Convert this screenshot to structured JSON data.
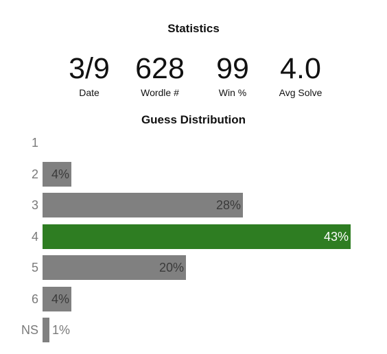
{
  "statistics": {
    "title": "Statistics",
    "items": [
      {
        "value": "3/9",
        "label": "Date"
      },
      {
        "value": "628",
        "label": "Wordle #"
      },
      {
        "value": "99",
        "label": "Win %"
      },
      {
        "value": "4.0",
        "label": "Avg Solve"
      }
    ]
  },
  "distribution": {
    "title": "Guess Distribution",
    "max_percent": 43,
    "bar_color": "#808080",
    "highlight_color": "#2e7d22",
    "rows": [
      {
        "guess": "1",
        "percent": 0,
        "label": "",
        "highlight": false
      },
      {
        "guess": "2",
        "percent": 4,
        "label": "4%",
        "highlight": false
      },
      {
        "guess": "3",
        "percent": 28,
        "label": "28%",
        "highlight": false
      },
      {
        "guess": "4",
        "percent": 43,
        "label": "43%",
        "highlight": true
      },
      {
        "guess": "5",
        "percent": 20,
        "label": "20%",
        "highlight": false
      },
      {
        "guess": "6",
        "percent": 4,
        "label": "4%",
        "highlight": false
      },
      {
        "guess": "NS",
        "percent": 1,
        "label": "1%",
        "highlight": false
      }
    ]
  }
}
